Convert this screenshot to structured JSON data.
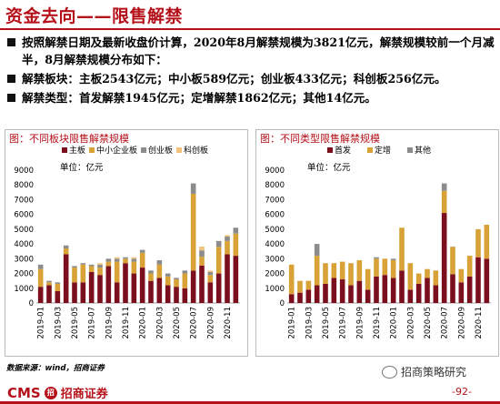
{
  "header": {
    "title": "资金去向——限售解禁"
  },
  "bullets": [
    "按照解禁日期及最新收盘价计算，2020年8月解禁规模为3821亿元，解禁规模较前一个月减半，8月解禁规模分布如下：",
    "解禁板块：主板2543亿元；中小板589亿元；创业板433亿元；科创板256亿元。",
    "解禁类型：首发解禁1945亿元；定增解禁1862亿元；其他14亿元。"
  ],
  "chart_data": [
    {
      "type": "bar",
      "stacked": true,
      "title": "图：不同板块限售解禁规模",
      "unit": "单位：亿元",
      "ylim": [
        0,
        9000
      ],
      "yticks": [
        0,
        1000,
        2000,
        3000,
        4000,
        5000,
        6000,
        7000,
        8000,
        9000
      ],
      "categories": [
        "2019-01",
        "2019-02",
        "2019-03",
        "2019-04",
        "2019-05",
        "2019-06",
        "2019-07",
        "2019-08",
        "2019-09",
        "2019-10",
        "2019-11",
        "2019-12",
        "2020-01",
        "2020-02",
        "2020-03",
        "2020-04",
        "2020-05",
        "2020-06",
        "2020-07",
        "2020-08",
        "2020-09",
        "2020-10",
        "2020-11",
        "2020-12"
      ],
      "xtick_labels": [
        "2019-01",
        "2019-03",
        "2019-05",
        "2019-07",
        "2019-09",
        "2019-11",
        "2020-01",
        "2020-03",
        "2020-05",
        "2020-07",
        "2020-09",
        "2020-11"
      ],
      "legend_position": "top",
      "series": [
        {
          "name": "主板",
          "color": "#7b0f1e",
          "values": [
            1100,
            1200,
            800,
            3300,
            1400,
            1400,
            2100,
            1900,
            2500,
            1400,
            2700,
            2000,
            2400,
            1500,
            1700,
            1200,
            1100,
            1000,
            2200,
            2543,
            1400,
            2000,
            3300,
            3200
          ]
        },
        {
          "name": "中小企业板",
          "color": "#d9a237",
          "values": [
            1200,
            200,
            500,
            400,
            1000,
            1200,
            400,
            500,
            300,
            1400,
            300,
            800,
            1000,
            500,
            900,
            600,
            500,
            1000,
            5200,
            589,
            500,
            1800,
            900,
            1500
          ]
        },
        {
          "name": "创业板",
          "color": "#8c8c8c",
          "values": [
            300,
            100,
            100,
            200,
            100,
            100,
            100,
            200,
            200,
            200,
            100,
            200,
            200,
            200,
            300,
            200,
            100,
            200,
            700,
            433,
            200,
            400,
            300,
            400
          ]
        },
        {
          "name": "科创板",
          "color": "#f2c37a",
          "values": [
            0,
            0,
            0,
            0,
            0,
            0,
            0,
            100,
            0,
            100,
            0,
            100,
            0,
            0,
            0,
            0,
            0,
            0,
            0,
            256,
            100,
            0,
            100,
            0
          ]
        }
      ]
    },
    {
      "type": "bar",
      "stacked": true,
      "title": "图：不同类型限售解禁规模",
      "unit": "单位：亿元",
      "ylim": [
        0,
        9000
      ],
      "yticks": [
        0,
        1000,
        2000,
        3000,
        4000,
        5000,
        6000,
        7000,
        8000,
        9000
      ],
      "categories": [
        "2019-01",
        "2019-02",
        "2019-03",
        "2019-04",
        "2019-05",
        "2019-06",
        "2019-07",
        "2019-08",
        "2019-09",
        "2019-10",
        "2019-11",
        "2019-12",
        "2020-01",
        "2020-02",
        "2020-03",
        "2020-04",
        "2020-05",
        "2020-06",
        "2020-07",
        "2020-08",
        "2020-09",
        "2020-10",
        "2020-11",
        "2020-12"
      ],
      "xtick_labels": [
        "2019-01",
        "2019-03",
        "2019-05",
        "2019-07",
        "2019-09",
        "2019-11",
        "2020-01",
        "2020-03",
        "2020-05",
        "2020-07",
        "2020-09",
        "2020-11"
      ],
      "legend_position": "top",
      "series": [
        {
          "name": "首发",
          "color": "#7b0f1e",
          "values": [
            600,
            700,
            900,
            1200,
            1300,
            1700,
            1600,
            1200,
            1500,
            900,
            1800,
            1900,
            1700,
            2200,
            900,
            1300,
            1700,
            1200,
            6100,
            1945,
            1400,
            1800,
            3100,
            3000
          ]
        },
        {
          "name": "定增",
          "color": "#d9a237",
          "values": [
            2000,
            800,
            600,
            2000,
            1400,
            1000,
            1200,
            1500,
            1400,
            1400,
            1200,
            1100,
            1200,
            2900,
            1800,
            700,
            600,
            1000,
            1500,
            1862,
            900,
            1400,
            1900,
            2300
          ]
        },
        {
          "name": "其他",
          "color": "#8c8c8c",
          "values": [
            0,
            0,
            0,
            800,
            0,
            0,
            0,
            0,
            0,
            0,
            100,
            0,
            100,
            0,
            0,
            0,
            0,
            0,
            500,
            14,
            0,
            0,
            0,
            0
          ]
        }
      ]
    }
  ],
  "footer": {
    "source": "数据来源：wind，招商证券",
    "logo_text": "CMS",
    "logo_mark": "招",
    "brand": "招商证券",
    "wechat": "招商策略研究",
    "page": "-92-"
  },
  "colors": {
    "accent": "#b5111a"
  }
}
